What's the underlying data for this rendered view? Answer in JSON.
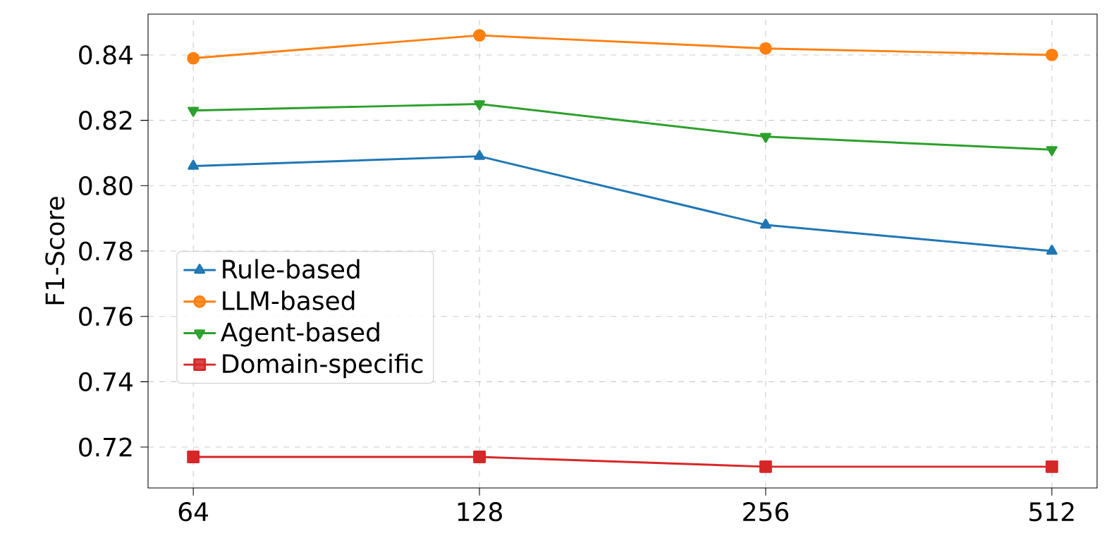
{
  "chart_data": {
    "type": "line",
    "ylabel": "F1-Score",
    "categories": [
      "64",
      "128",
      "256",
      "512"
    ],
    "series": [
      {
        "name": "Rule-based",
        "color": "#1f77b4",
        "marker": "triangle",
        "values": [
          0.806,
          0.809,
          0.788,
          0.78
        ]
      },
      {
        "name": "LLM-based",
        "color": "#ff7f0e",
        "marker": "circle",
        "values": [
          0.839,
          0.846,
          0.842,
          0.84
        ]
      },
      {
        "name": "Agent-based",
        "color": "#2ca02c",
        "marker": "triangle down",
        "values": [
          0.823,
          0.825,
          0.815,
          0.811
        ]
      },
      {
        "name": "Domain-specific",
        "color": "#d62728",
        "marker": "square",
        "values": [
          0.717,
          0.717,
          0.714,
          0.714
        ]
      }
    ],
    "ylim": [
      0.7075,
      0.8525
    ],
    "yticks": [
      0.72,
      0.74,
      0.76,
      0.78,
      {
        "value": 0.8,
        "label": "0.80"
      },
      0.82,
      0.84
    ],
    "grid": true,
    "legend": "center left"
  }
}
